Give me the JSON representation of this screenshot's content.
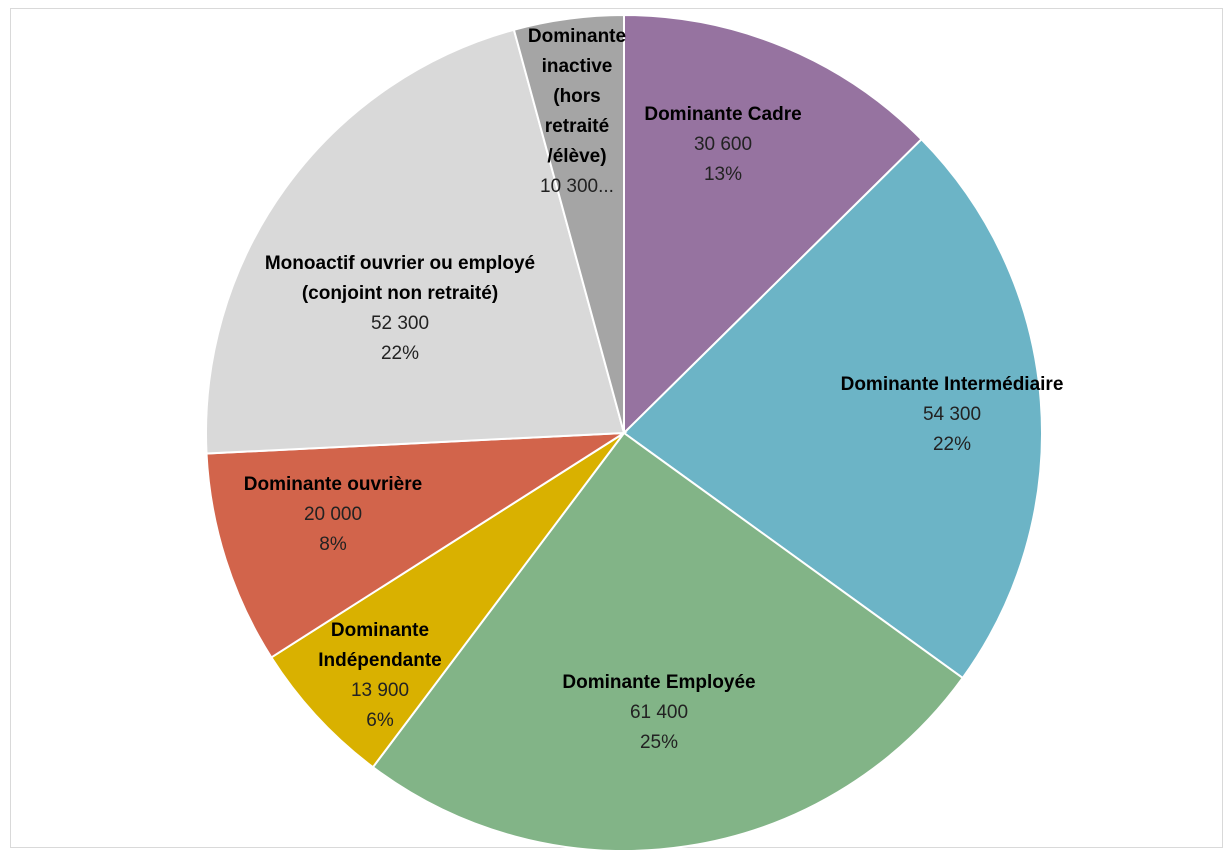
{
  "chart_data": {
    "type": "pie",
    "slices": [
      {
        "name": "Dominante Cadre",
        "value": 30600,
        "value_label": "30 600",
        "percent_label": "13%",
        "color": "#9673a0"
      },
      {
        "name": "Dominante Intermédiaire",
        "value": 54300,
        "value_label": "54 300",
        "percent_label": "22%",
        "color": "#6cb4c6"
      },
      {
        "name": "Dominante Employée",
        "value": 61400,
        "value_label": "61 400",
        "percent_label": "25%",
        "color": "#82b487"
      },
      {
        "name": "Dominante Indépendante",
        "value": 13900,
        "value_label": "13 900",
        "percent_label": "6%",
        "color": "#d9b100"
      },
      {
        "name": "Dominante ouvrière",
        "value": 20000,
        "value_label": "20 000",
        "percent_label": "8%",
        "color": "#d2644b"
      },
      {
        "name": "Monoactif ouvrier ou employé (conjoint non retraité)",
        "value": 52300,
        "value_label": "52 300",
        "percent_label": "22%",
        "color": "#d9d9d9"
      },
      {
        "name": "Dominante inactive (hors retraité /élève)",
        "value": 10300,
        "value_label": "10 300...",
        "percent_label": "",
        "color": "#a5a5a5"
      }
    ]
  }
}
